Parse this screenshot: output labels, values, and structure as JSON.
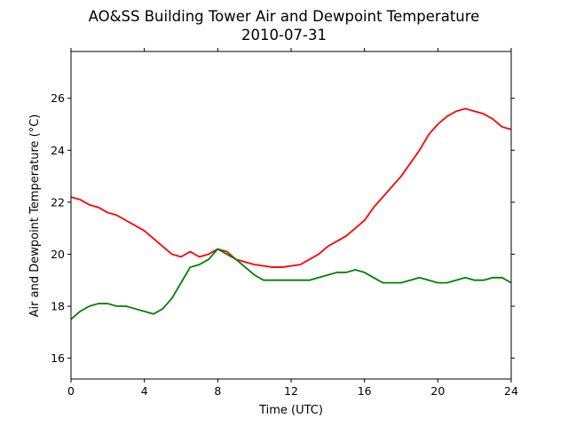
{
  "chart_data": {
    "type": "line",
    "title": "AO&SS Building Tower Air and Dewpoint Temperature",
    "subtitle": "2010-07-31",
    "xlabel": "Time (UTC)",
    "ylabel": "Air and Dewpoint Temperature (°C)",
    "xlim": [
      0,
      24
    ],
    "ylim": [
      15.2,
      27.8
    ],
    "xticks": [
      0,
      4,
      8,
      12,
      16,
      20,
      24
    ],
    "yticks": [
      16,
      18,
      20,
      22,
      24,
      26
    ],
    "grid": false,
    "legend": "none",
    "series": [
      {
        "color": "#ff0000",
        "x": [
          0,
          0.5,
          1,
          1.5,
          2,
          2.5,
          3,
          3.5,
          4,
          4.5,
          5,
          5.5,
          6,
          6.5,
          7,
          7.5,
          8,
          8.5,
          9,
          9.5,
          10,
          10.5,
          11,
          11.5,
          12,
          12.5,
          13,
          13.5,
          14,
          14.5,
          15,
          15.5,
          16,
          16.5,
          17,
          17.5,
          18,
          18.5,
          19,
          19.5,
          20,
          20.5,
          21,
          21.5,
          22,
          22.5,
          23,
          23.5,
          24
        ],
        "y": [
          22.2,
          22.1,
          21.9,
          21.8,
          21.6,
          21.5,
          21.3,
          21.1,
          20.9,
          20.6,
          20.3,
          20.0,
          19.9,
          20.1,
          19.9,
          20.0,
          20.2,
          20.1,
          19.8,
          19.7,
          19.6,
          19.55,
          19.5,
          19.5,
          19.55,
          19.6,
          19.8,
          20.0,
          20.3,
          20.5,
          20.7,
          21.0,
          21.3,
          21.8,
          22.2,
          22.6,
          23.0,
          23.5,
          24.0,
          24.6,
          25.0,
          25.3,
          25.5,
          25.6,
          25.5,
          25.4,
          25.2,
          24.9,
          24.8
        ]
      },
      {
        "color": "#008000",
        "x": [
          0,
          0.5,
          1,
          1.5,
          2,
          2.5,
          3,
          3.5,
          4,
          4.5,
          5,
          5.5,
          6,
          6.5,
          7,
          7.5,
          8,
          8.5,
          9,
          9.5,
          10,
          10.5,
          11,
          11.5,
          12,
          12.5,
          13,
          13.5,
          14,
          14.5,
          15,
          15.5,
          16,
          16.5,
          17,
          17.5,
          18,
          18.5,
          19,
          19.5,
          20,
          20.5,
          21,
          21.5,
          22,
          22.5,
          23,
          23.5,
          24
        ],
        "y": [
          17.5,
          17.8,
          18.0,
          18.1,
          18.1,
          18.0,
          18.0,
          17.9,
          17.8,
          17.7,
          17.9,
          18.3,
          18.9,
          19.5,
          19.6,
          19.8,
          20.2,
          20.0,
          19.8,
          19.5,
          19.2,
          19.0,
          19.0,
          19.0,
          19.0,
          19.0,
          19.0,
          19.1,
          19.2,
          19.3,
          19.3,
          19.4,
          19.3,
          19.1,
          18.9,
          18.9,
          18.9,
          19.0,
          19.1,
          19.0,
          18.9,
          18.9,
          19.0,
          19.1,
          19.0,
          19.0,
          19.1,
          19.1,
          18.9
        ]
      }
    ]
  }
}
